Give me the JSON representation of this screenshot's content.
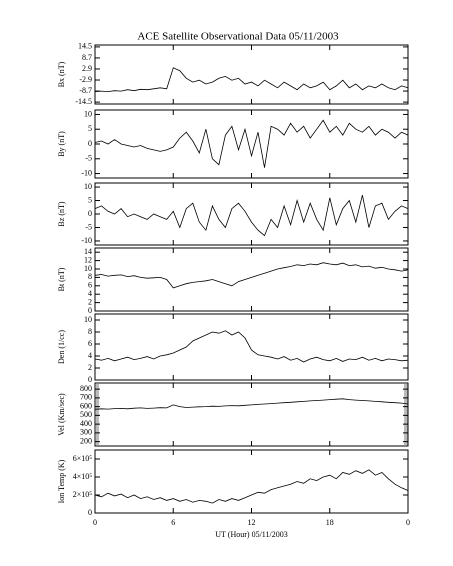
{
  "chart_data": [
    {
      "type": "line",
      "title": "ACE Satellite Observational Data   05/11/2003",
      "ylabel": "Bx (nT)",
      "color": "#000000",
      "x": [
        0,
        0.5,
        1,
        1.5,
        2,
        2.5,
        3,
        3.5,
        4,
        4.5,
        5,
        5.5,
        6,
        6.5,
        7,
        7.5,
        8,
        8.5,
        9,
        9.5,
        10,
        10.5,
        11,
        11.5,
        12,
        12.5,
        13,
        13.5,
        14,
        14.5,
        15,
        15.5,
        16,
        16.5,
        17,
        17.5,
        18,
        18.5,
        19,
        19.5,
        20,
        20.5,
        21,
        21.5,
        22,
        22.5,
        23,
        23.5,
        24
      ],
      "values": [
        -9,
        -8.7,
        -9,
        -8.5,
        -8.7,
        -8,
        -8.5,
        -7.8,
        -8,
        -7.5,
        -7,
        -7.5,
        3.5,
        2,
        -2,
        -4,
        -3,
        -5,
        -4,
        -2,
        -1,
        -3,
        -2,
        -5,
        -4,
        -6,
        -3,
        -5,
        -7,
        -4,
        -6,
        -8,
        -5,
        -7,
        -6,
        -4,
        -8,
        -6,
        -3,
        -7,
        -5,
        -8,
        -6,
        -7,
        -5,
        -7,
        -8,
        -6,
        -7
      ],
      "xlim": [
        0,
        24
      ],
      "ylim": [
        -15.5,
        15.5
      ],
      "yticks": [
        -14.5,
        -8.7,
        -2.9,
        2.9,
        8.7,
        14.5
      ]
    },
    {
      "type": "line",
      "ylabel": "By (nT)",
      "color": "#000000",
      "x": [
        0,
        0.5,
        1,
        1.5,
        2,
        2.5,
        3,
        3.5,
        4,
        4.5,
        5,
        5.5,
        6,
        6.5,
        7,
        7.5,
        8,
        8.5,
        9,
        9.5,
        10,
        10.5,
        11,
        11.5,
        12,
        12.5,
        13,
        13.5,
        14,
        14.5,
        15,
        15.5,
        16,
        16.5,
        17,
        17.5,
        18,
        18.5,
        19,
        19.5,
        20,
        20.5,
        21,
        21.5,
        22,
        22.5,
        23,
        23.5,
        24
      ],
      "values": [
        0.5,
        1,
        0,
        1.5,
        0,
        -0.5,
        -1,
        -0.5,
        -1.5,
        -2,
        -2.5,
        -2,
        -1,
        2,
        4,
        1,
        -3,
        5,
        -5,
        -7,
        3,
        6,
        -2,
        5,
        -4,
        4,
        -8,
        6,
        5,
        3,
        7,
        4,
        6,
        2,
        5,
        8,
        4,
        6,
        3,
        7,
        5,
        4,
        6,
        3,
        5,
        4,
        2,
        4,
        3
      ],
      "xlim": [
        0,
        24
      ],
      "ylim": [
        -11.5,
        11.5
      ],
      "yticks": [
        -10,
        -5,
        0,
        5,
        10
      ]
    },
    {
      "type": "line",
      "ylabel": "Bz (nT)",
      "color": "#000000",
      "x": [
        0,
        0.5,
        1,
        1.5,
        2,
        2.5,
        3,
        3.5,
        4,
        4.5,
        5,
        5.5,
        6,
        6.5,
        7,
        7.5,
        8,
        8.5,
        9,
        9.5,
        10,
        10.5,
        11,
        11.5,
        12,
        12.5,
        13,
        13.5,
        14,
        14.5,
        15,
        15.5,
        16,
        16.5,
        17,
        17.5,
        18,
        18.5,
        19,
        19.5,
        20,
        20.5,
        21,
        21.5,
        22,
        22.5,
        23,
        23.5,
        24
      ],
      "values": [
        2,
        3,
        1,
        0,
        2,
        -1,
        0,
        -1,
        -2,
        0,
        -1,
        -2,
        1,
        -5,
        2,
        4,
        -3,
        -6,
        3,
        -2,
        -5,
        2,
        4,
        1,
        -3,
        -6,
        -8,
        -2,
        -5,
        3,
        -4,
        5,
        -3,
        4,
        -2,
        -6,
        6,
        -4,
        2,
        5,
        -3,
        7,
        -5,
        3,
        4,
        -2,
        1,
        3,
        2
      ],
      "xlim": [
        0,
        24
      ],
      "ylim": [
        -11.5,
        11.5
      ],
      "yticks": [
        -10,
        -5,
        0,
        5,
        10
      ]
    },
    {
      "type": "line",
      "ylabel": "Bt (nT)",
      "color": "#000000",
      "x": [
        0,
        0.5,
        1,
        1.5,
        2,
        2.5,
        3,
        3.5,
        4,
        4.5,
        5,
        5.5,
        6,
        6.5,
        7,
        7.5,
        8,
        8.5,
        9,
        9.5,
        10,
        10.5,
        11,
        11.5,
        12,
        12.5,
        13,
        13.5,
        14,
        14.5,
        15,
        15.5,
        16,
        16.5,
        17,
        17.5,
        18,
        18.5,
        19,
        19.5,
        20,
        20.5,
        21,
        21.5,
        22,
        22.5,
        23,
        23.5,
        24
      ],
      "values": [
        8.5,
        8.7,
        8.3,
        8.5,
        8.6,
        8.2,
        8.4,
        8,
        7.8,
        7.9,
        8,
        7.5,
        5.5,
        6,
        6.5,
        6.8,
        7,
        7.2,
        7.5,
        7,
        6.5,
        6,
        7,
        7.5,
        8,
        8.5,
        9,
        9.5,
        10,
        10.3,
        10.6,
        11,
        10.8,
        11.2,
        11,
        11.5,
        11.2,
        11,
        11.4,
        10.8,
        11,
        10.5,
        10.7,
        10.2,
        10.4,
        10,
        9.8,
        9.5,
        9.8
      ],
      "xlim": [
        0,
        24
      ],
      "ylim": [
        0,
        15
      ],
      "yticks": [
        0,
        2,
        4,
        6,
        8,
        10,
        12,
        14
      ]
    },
    {
      "type": "line",
      "ylabel": "Den (1/cc)",
      "color": "#000000",
      "x": [
        0,
        0.5,
        1,
        1.5,
        2,
        2.5,
        3,
        3.5,
        4,
        4.5,
        5,
        5.5,
        6,
        6.5,
        7,
        7.5,
        8,
        8.5,
        9,
        9.5,
        10,
        10.5,
        11,
        11.5,
        12,
        12.5,
        13,
        13.5,
        14,
        14.5,
        15,
        15.5,
        16,
        16.5,
        17,
        17.5,
        18,
        18.5,
        19,
        19.5,
        20,
        20.5,
        21,
        21.5,
        22,
        22.5,
        23,
        23.5,
        24
      ],
      "values": [
        3.5,
        3.3,
        3.6,
        3.2,
        3.5,
        3.8,
        3.4,
        3.6,
        3.9,
        3.5,
        4,
        4.2,
        4.5,
        5,
        5.5,
        6.5,
        7,
        7.5,
        8,
        7.8,
        8.2,
        7.5,
        8,
        7,
        5,
        4.2,
        4,
        3.8,
        3.5,
        3.9,
        3.3,
        3.6,
        3,
        3.5,
        3.8,
        3.4,
        3.2,
        3.6,
        3.1,
        3.5,
        3.4,
        3.8,
        3.3,
        3.6,
        3.2,
        3.5,
        3.4,
        3.2,
        3.3
      ],
      "xlim": [
        0,
        24
      ],
      "ylim": [
        0,
        11
      ],
      "yticks": [
        0,
        2,
        4,
        6,
        8,
        10
      ]
    },
    {
      "type": "line",
      "ylabel": "Vel (Km/sec)",
      "color": "#000000",
      "x": [
        0,
        0.5,
        1,
        1.5,
        2,
        2.5,
        3,
        3.5,
        4,
        4.5,
        5,
        5.5,
        6,
        6.5,
        7,
        7.5,
        8,
        8.5,
        9,
        9.5,
        10,
        10.5,
        11,
        11.5,
        12,
        12.5,
        13,
        13.5,
        14,
        14.5,
        15,
        15.5,
        16,
        16.5,
        17,
        17.5,
        18,
        18.5,
        19,
        19.5,
        20,
        20.5,
        21,
        21.5,
        22,
        22.5,
        23,
        23.5,
        24
      ],
      "values": [
        570,
        575,
        572,
        578,
        580,
        575,
        582,
        585,
        580,
        583,
        588,
        585,
        620,
        600,
        590,
        595,
        598,
        600,
        605,
        602,
        608,
        612,
        610,
        615,
        620,
        625,
        630,
        635,
        640,
        645,
        650,
        655,
        660,
        665,
        670,
        675,
        680,
        685,
        690,
        680,
        675,
        670,
        665,
        660,
        655,
        650,
        645,
        640,
        630
      ],
      "xlim": [
        0,
        24
      ],
      "ylim": [
        150,
        870
      ],
      "yticks": [
        200,
        300,
        400,
        500,
        600,
        700,
        800
      ]
    },
    {
      "type": "line",
      "ylabel": "Ion Temp (K)",
      "color": "#000000",
      "xlabel": "UT (Hour)  05/11/2003",
      "x": [
        0,
        0.5,
        1,
        1.5,
        2,
        2.5,
        3,
        3.5,
        4,
        4.5,
        5,
        5.5,
        6,
        6.5,
        7,
        7.5,
        8,
        8.5,
        9,
        9.5,
        10,
        10.5,
        11,
        11.5,
        12,
        12.5,
        13,
        13.5,
        14,
        14.5,
        15,
        15.5,
        16,
        16.5,
        17,
        17.5,
        18,
        18.5,
        19,
        19.5,
        20,
        20.5,
        21,
        21.5,
        22,
        22.5,
        23,
        23.5,
        24
      ],
      "values": [
        200000,
        180000,
        220000,
        190000,
        210000,
        170000,
        200000,
        160000,
        180000,
        150000,
        170000,
        140000,
        160000,
        130000,
        150000,
        120000,
        140000,
        130000,
        110000,
        150000,
        130000,
        160000,
        140000,
        170000,
        200000,
        230000,
        220000,
        260000,
        280000,
        300000,
        320000,
        350000,
        330000,
        380000,
        360000,
        400000,
        420000,
        380000,
        450000,
        430000,
        470000,
        440000,
        480000,
        420000,
        450000,
        380000,
        320000,
        280000,
        250000
      ],
      "xlim": [
        0,
        24
      ],
      "ylim": [
        0,
        700000
      ],
      "yticks": [
        0,
        {
          "value": 200000,
          "label": "2×10⁵"
        },
        {
          "value": 400000,
          "label": "4×10⁵"
        },
        {
          "value": 600000,
          "label": "6×10⁵"
        }
      ],
      "xticks": [
        0,
        6,
        12,
        18,
        {
          "value": 24,
          "label": "0"
        }
      ]
    }
  ]
}
